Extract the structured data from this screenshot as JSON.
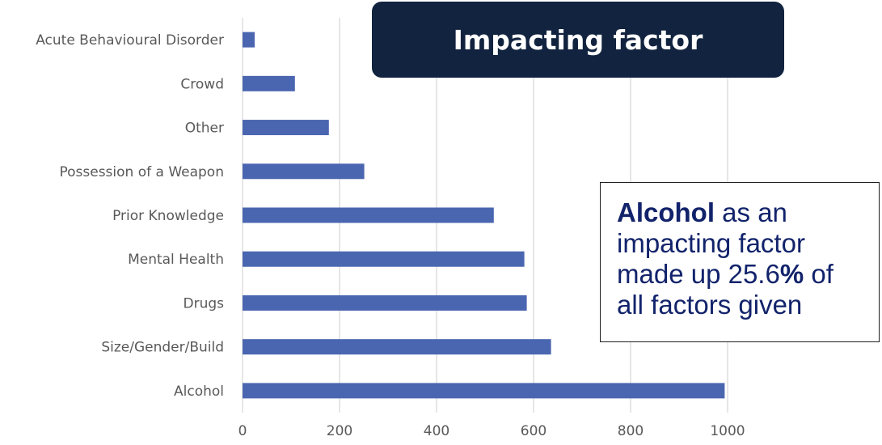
{
  "chart_data": {
    "type": "bar",
    "orientation": "horizontal",
    "title": "Impacting factor",
    "categories": [
      "Acute Behavioural Disorder",
      "Crowd",
      "Other",
      "Possession of a Weapon",
      "Prior Knowledge",
      "Mental Health",
      "Drugs",
      "Size/Gender/Build",
      "Alcohol"
    ],
    "values": [
      25,
      108,
      178,
      251,
      518,
      581,
      586,
      636,
      994
    ],
    "xlim": [
      0,
      1000
    ],
    "x_ticks": [
      "0",
      "200",
      "400",
      "600",
      "800",
      "1000"
    ],
    "grid": true,
    "bar_color": "#4a66b0"
  },
  "callout": {
    "bold": "Alcohol",
    "line1_rest": " as an",
    "line2": "impacting factor",
    "line3_pre": "made up 25.6",
    "line3_pct": "%",
    "line3_post": " of",
    "line4": "all factors given"
  }
}
